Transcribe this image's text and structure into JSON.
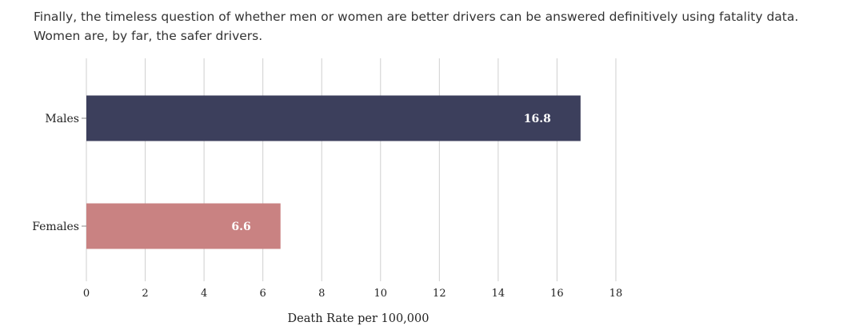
{
  "intro": {
    "line1": "Finally, the timeless question of whether men or women are better drivers can be answered definitively using fatality data.",
    "line2": "Women are, by far, the safer drivers."
  },
  "chart_data": {
    "type": "bar",
    "orientation": "horizontal",
    "categories": [
      "Males",
      "Females"
    ],
    "values": [
      16.8,
      6.6
    ],
    "value_labels": [
      "16.8",
      "6.6"
    ],
    "colors": [
      "#3c3f5c",
      "#c98282"
    ],
    "title": "",
    "xlabel": "Death Rate per 100,000",
    "ylabel": "",
    "xlim": [
      0,
      18
    ],
    "xticks": [
      "0",
      "2",
      "4",
      "6",
      "8",
      "10",
      "12",
      "14",
      "16",
      "18"
    ],
    "grid": "vertical"
  }
}
